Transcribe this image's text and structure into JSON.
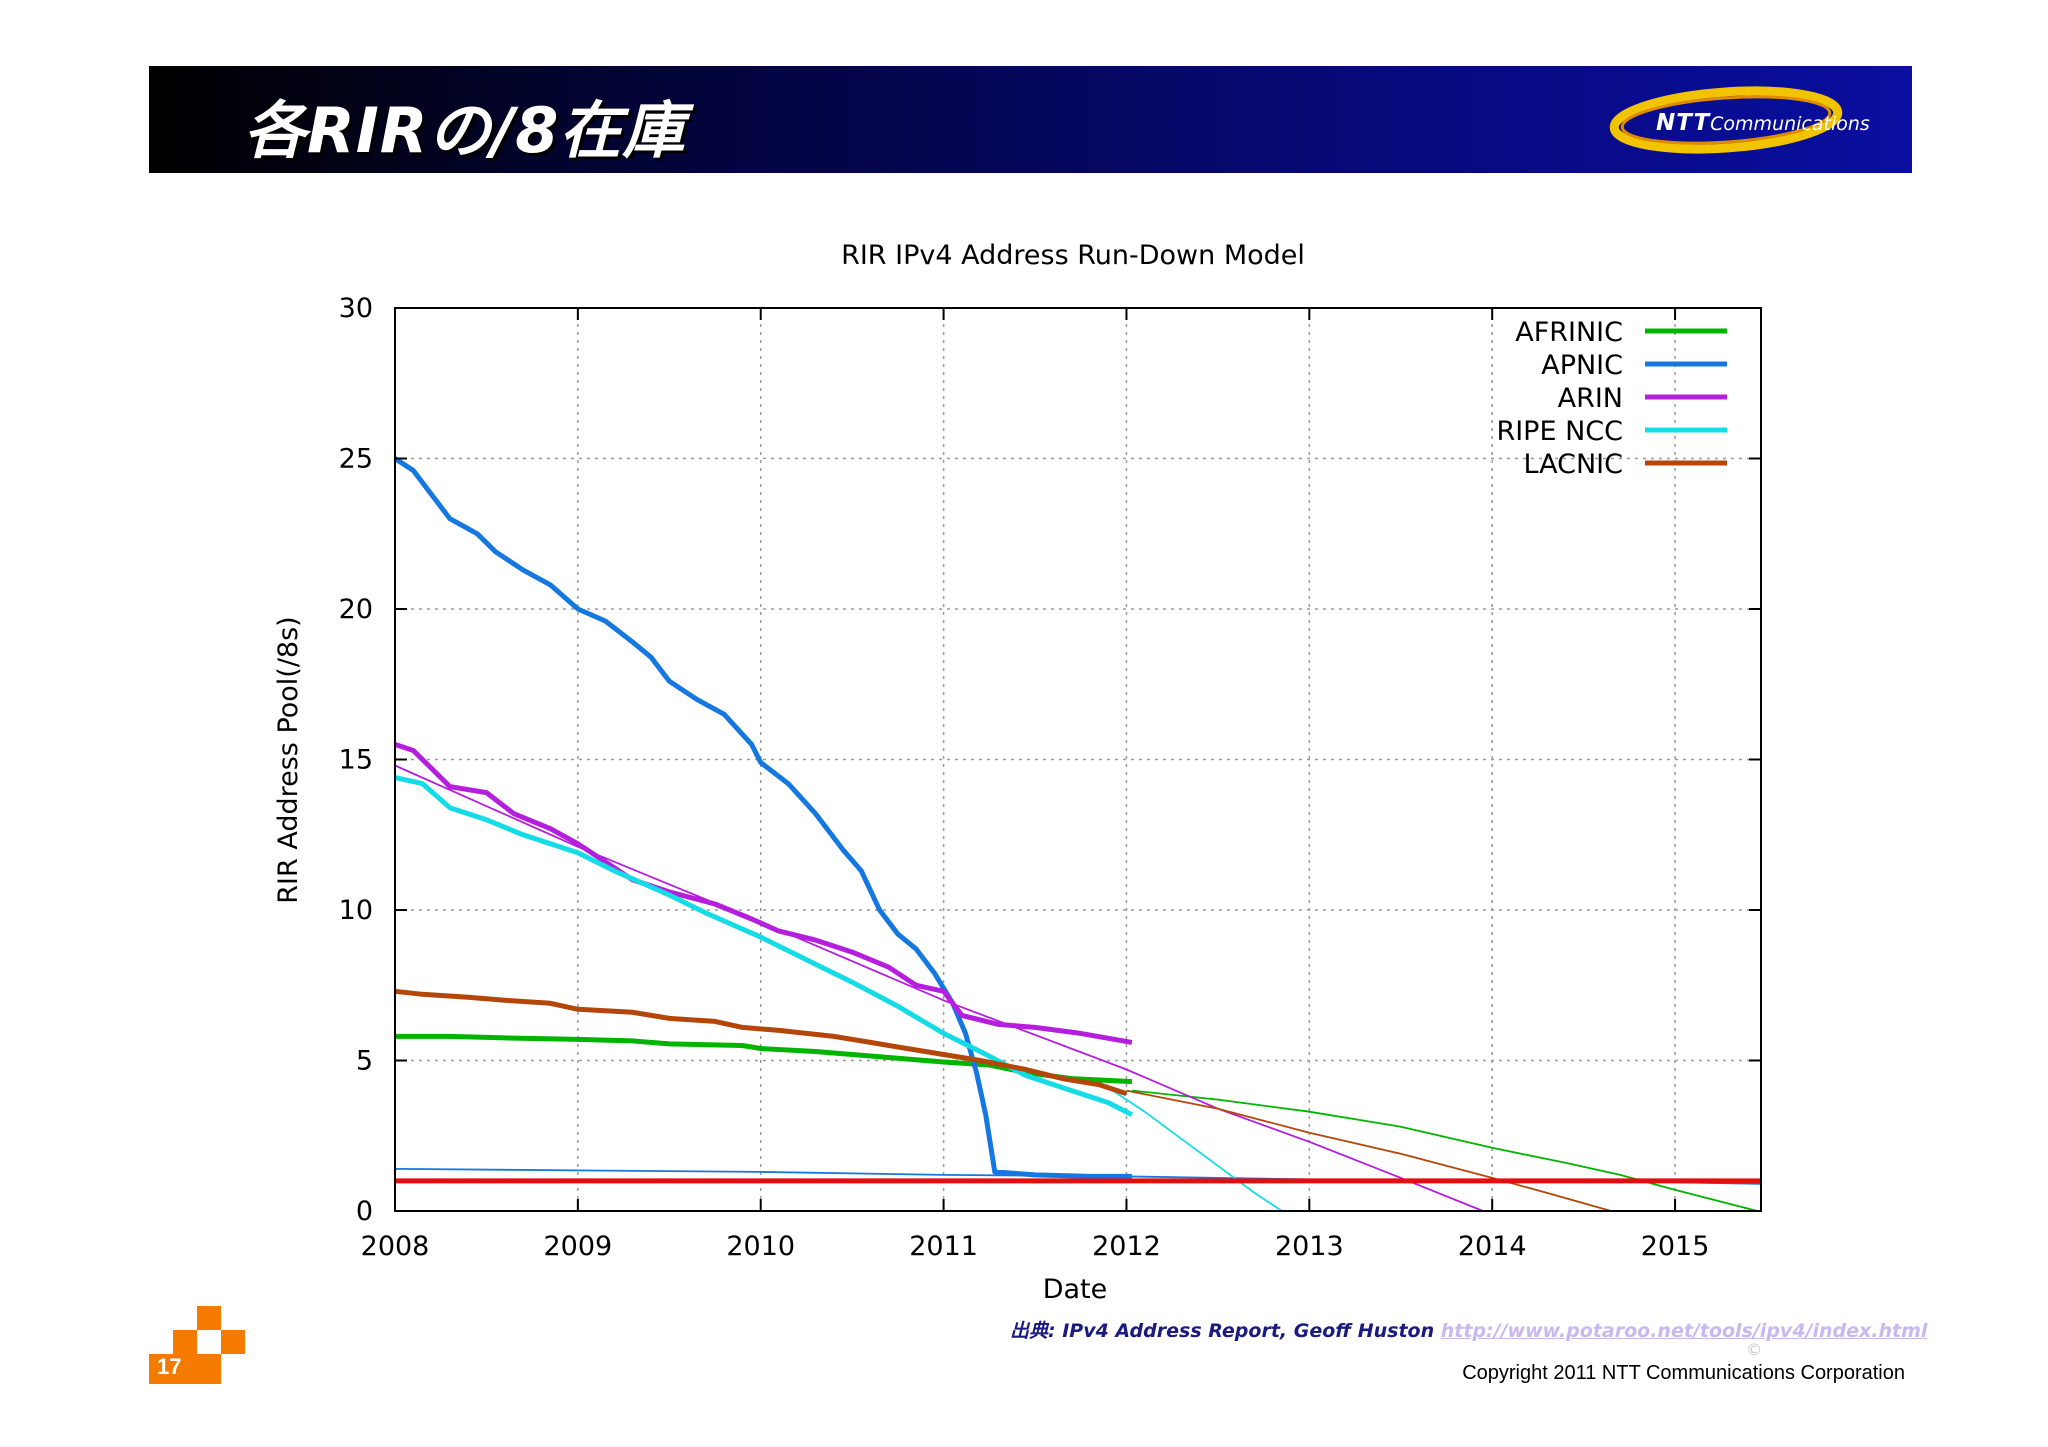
{
  "slide": {
    "title": "各RIRの/8在庫",
    "logo_brand": "NTT",
    "logo_suffix": "Communications",
    "page_number": "17",
    "source_label": "出典: IPv4 Address Report, Geoff Huston",
    "source_url": "http://www.potaroo.net/tools/ipv4/index.html",
    "copyright_symbol": "©",
    "copyright": "Copyright 2011 NTT Communications Corporation",
    "colors": {
      "header": "#06097a",
      "accent": "#f47a00"
    }
  },
  "chart_data": {
    "type": "line",
    "title": "RIR IPv4 Address Run-Down Model",
    "xlabel": "Date",
    "ylabel": "RIR Address Pool(/8s)",
    "xlim": [
      2008,
      2015.47
    ],
    "ylim": [
      0,
      30
    ],
    "xticks": [
      "2008",
      "2009",
      "2010",
      "2011",
      "2012",
      "2013",
      "2014",
      "2015"
    ],
    "yticks": [
      "0",
      "5",
      "10",
      "15",
      "20",
      "25",
      "30"
    ],
    "grid": true,
    "legend_position": "top-right",
    "reference_line": {
      "y": 1,
      "color": "#e01010"
    },
    "series": [
      {
        "name": "AFRINIC",
        "color": "#00b400",
        "actual": [
          [
            2008.0,
            5.8
          ],
          [
            2008.3,
            5.8
          ],
          [
            2008.6,
            5.75
          ],
          [
            2009.0,
            5.7
          ],
          [
            2009.3,
            5.65
          ],
          [
            2009.5,
            5.55
          ],
          [
            2009.9,
            5.5
          ],
          [
            2010.0,
            5.4
          ],
          [
            2010.3,
            5.3
          ],
          [
            2010.5,
            5.2
          ],
          [
            2010.8,
            5.05
          ],
          [
            2011.0,
            4.95
          ],
          [
            2011.25,
            4.85
          ],
          [
            2011.45,
            4.6
          ],
          [
            2011.7,
            4.4
          ],
          [
            2012.03,
            4.3
          ]
        ],
        "projection": [
          [
            2012.03,
            4.0
          ],
          [
            2012.5,
            3.7
          ],
          [
            2013.0,
            3.3
          ],
          [
            2013.5,
            2.8
          ],
          [
            2014.0,
            2.1
          ],
          [
            2014.4,
            1.6
          ],
          [
            2014.7,
            1.2
          ],
          [
            2015.0,
            0.7
          ],
          [
            2015.45,
            0.0
          ]
        ]
      },
      {
        "name": "APNIC",
        "color": "#1478e0",
        "actual": [
          [
            2008.0,
            25.0
          ],
          [
            2008.1,
            24.6
          ],
          [
            2008.2,
            23.8
          ],
          [
            2008.3,
            23.0
          ],
          [
            2008.45,
            22.5
          ],
          [
            2008.55,
            21.9
          ],
          [
            2008.7,
            21.3
          ],
          [
            2008.85,
            20.8
          ],
          [
            2009.0,
            20.0
          ],
          [
            2009.15,
            19.6
          ],
          [
            2009.3,
            18.9
          ],
          [
            2009.4,
            18.4
          ],
          [
            2009.5,
            17.6
          ],
          [
            2009.65,
            17.0
          ],
          [
            2009.8,
            16.5
          ],
          [
            2009.95,
            15.5
          ],
          [
            2010.0,
            14.9
          ],
          [
            2010.15,
            14.2
          ],
          [
            2010.3,
            13.2
          ],
          [
            2010.45,
            12.0
          ],
          [
            2010.55,
            11.3
          ],
          [
            2010.65,
            10.0
          ],
          [
            2010.75,
            9.2
          ],
          [
            2010.85,
            8.7
          ],
          [
            2010.95,
            7.9
          ],
          [
            2011.05,
            6.9
          ],
          [
            2011.12,
            5.9
          ],
          [
            2011.18,
            4.6
          ],
          [
            2011.23,
            3.2
          ],
          [
            2011.28,
            1.3
          ],
          [
            2011.5,
            1.2
          ],
          [
            2011.8,
            1.15
          ],
          [
            2012.03,
            1.15
          ]
        ],
        "projection": [
          [
            2008.0,
            1.4
          ],
          [
            2009.0,
            1.35
          ],
          [
            2010.0,
            1.3
          ],
          [
            2011.0,
            1.2
          ],
          [
            2012.0,
            1.15
          ],
          [
            2013.0,
            1.05
          ],
          [
            2014.0,
            1.0
          ],
          [
            2015.0,
            0.95
          ],
          [
            2015.47,
            0.9
          ]
        ]
      },
      {
        "name": "ARIN",
        "color": "#b41edc",
        "actual": [
          [
            2008.0,
            15.5
          ],
          [
            2008.1,
            15.3
          ],
          [
            2008.2,
            14.7
          ],
          [
            2008.3,
            14.1
          ],
          [
            2008.5,
            13.9
          ],
          [
            2008.65,
            13.2
          ],
          [
            2008.85,
            12.7
          ],
          [
            2009.0,
            12.2
          ],
          [
            2009.15,
            11.6
          ],
          [
            2009.3,
            11.0
          ],
          [
            2009.5,
            10.6
          ],
          [
            2009.75,
            10.2
          ],
          [
            2009.95,
            9.7
          ],
          [
            2010.1,
            9.3
          ],
          [
            2010.3,
            9.0
          ],
          [
            2010.5,
            8.6
          ],
          [
            2010.7,
            8.1
          ],
          [
            2010.85,
            7.5
          ],
          [
            2011.0,
            7.3
          ],
          [
            2011.1,
            6.5
          ],
          [
            2011.3,
            6.2
          ],
          [
            2011.5,
            6.1
          ],
          [
            2011.75,
            5.9
          ],
          [
            2012.03,
            5.6
          ]
        ],
        "projection": [
          [
            2008.0,
            14.8
          ],
          [
            2009.0,
            12.1
          ],
          [
            2010.0,
            9.6
          ],
          [
            2011.0,
            7.0
          ],
          [
            2012.0,
            4.7
          ],
          [
            2012.5,
            3.4
          ],
          [
            2013.0,
            2.3
          ],
          [
            2013.5,
            1.1
          ],
          [
            2013.95,
            0.0
          ]
        ]
      },
      {
        "name": "RIPE NCC",
        "color": "#14dce6",
        "actual": [
          [
            2008.0,
            14.4
          ],
          [
            2008.15,
            14.2
          ],
          [
            2008.3,
            13.4
          ],
          [
            2008.5,
            13.0
          ],
          [
            2008.7,
            12.5
          ],
          [
            2009.0,
            11.9
          ],
          [
            2009.2,
            11.3
          ],
          [
            2009.5,
            10.5
          ],
          [
            2009.7,
            9.9
          ],
          [
            2010.0,
            9.1
          ],
          [
            2010.3,
            8.2
          ],
          [
            2010.5,
            7.6
          ],
          [
            2010.75,
            6.8
          ],
          [
            2011.0,
            5.9
          ],
          [
            2011.2,
            5.3
          ],
          [
            2011.45,
            4.5
          ],
          [
            2011.7,
            4.0
          ],
          [
            2011.9,
            3.6
          ],
          [
            2012.03,
            3.2
          ]
        ],
        "projection": [
          [
            2011.9,
            4.1
          ],
          [
            2012.1,
            3.3
          ],
          [
            2012.3,
            2.4
          ],
          [
            2012.5,
            1.5
          ],
          [
            2012.7,
            0.6
          ],
          [
            2012.85,
            0.0
          ]
        ]
      },
      {
        "name": "LACNIC",
        "color": "#b4460a",
        "actual": [
          [
            2008.0,
            7.3
          ],
          [
            2008.15,
            7.2
          ],
          [
            2008.4,
            7.1
          ],
          [
            2008.6,
            7.0
          ],
          [
            2008.85,
            6.9
          ],
          [
            2009.0,
            6.7
          ],
          [
            2009.3,
            6.6
          ],
          [
            2009.5,
            6.4
          ],
          [
            2009.75,
            6.3
          ],
          [
            2009.9,
            6.1
          ],
          [
            2010.1,
            6.0
          ],
          [
            2010.4,
            5.8
          ],
          [
            2010.6,
            5.6
          ],
          [
            2010.8,
            5.4
          ],
          [
            2011.0,
            5.2
          ],
          [
            2011.2,
            5.0
          ],
          [
            2011.45,
            4.7
          ],
          [
            2011.65,
            4.4
          ],
          [
            2011.85,
            4.2
          ],
          [
            2012.0,
            3.9
          ]
        ],
        "projection": [
          [
            2012.0,
            4.0
          ],
          [
            2012.5,
            3.4
          ],
          [
            2013.0,
            2.6
          ],
          [
            2013.5,
            1.9
          ],
          [
            2014.0,
            1.1
          ],
          [
            2014.3,
            0.6
          ],
          [
            2014.65,
            0.0
          ]
        ]
      }
    ]
  }
}
